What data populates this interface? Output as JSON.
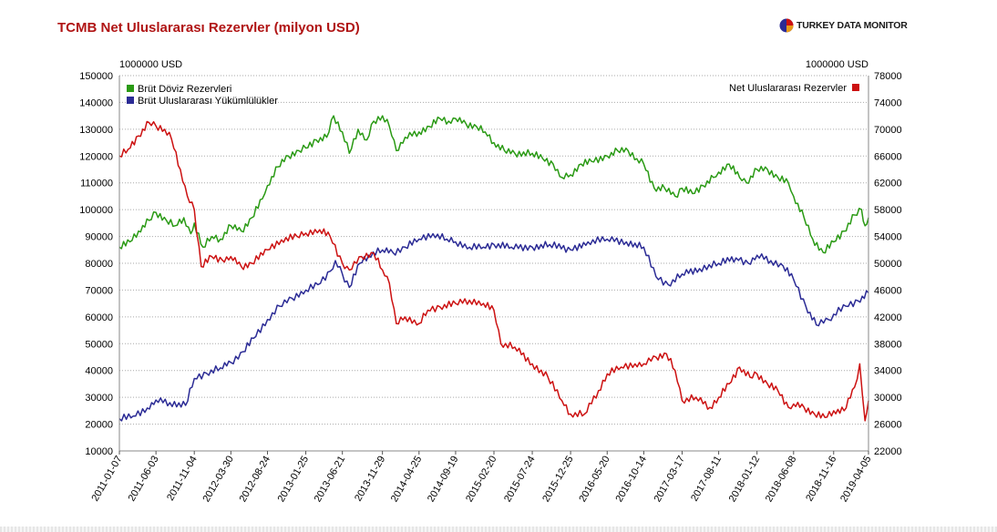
{
  "header": {
    "title": "TCMB Net Uluslararası Rezervler (milyon USD)",
    "brand": "TURKEY DATA MONITOR"
  },
  "chart_data": {
    "type": "line",
    "title": "TCMB Net Uluslararası Rezervler (milyon USD)",
    "left_axis": {
      "unit": "1000000 USD",
      "range": [
        10000,
        150000
      ],
      "ticks": [
        "10000",
        "20000",
        "30000",
        "40000",
        "50000",
        "60000",
        "70000",
        "80000",
        "90000",
        "100000",
        "110000",
        "120000",
        "130000",
        "140000",
        "150000"
      ]
    },
    "right_axis": {
      "unit": "1000000 USD",
      "range": [
        22000,
        78000
      ],
      "ticks": [
        "22000",
        "26000",
        "30000",
        "34000",
        "38000",
        "42000",
        "46000",
        "50000",
        "54000",
        "58000",
        "62000",
        "66000",
        "70000",
        "74000",
        "78000"
      ]
    },
    "x_range": [
      "2011-01-07",
      "2019-04-05"
    ],
    "x_ticks": [
      "2011-01-07",
      "2011-06-03",
      "2011-11-04",
      "2012-03-30",
      "2012-08-24",
      "2013-01-25",
      "2013-06-21",
      "2013-11-29",
      "2014-04-25",
      "2014-09-19",
      "2015-02-20",
      "2015-07-24",
      "2015-12-25",
      "2016-05-20",
      "2016-10-14",
      "2017-03-17",
      "2017-08-11",
      "2018-01-12",
      "2018-06-08",
      "2018-11-16",
      "2019-04-05"
    ],
    "grid": true,
    "legend": [
      {
        "name": "Brüt Döviz Rezervleri",
        "color": "#2a9a14",
        "axis": "left",
        "placement": "top-left"
      },
      {
        "name": "Brüt Uluslararası Yükümlülükler",
        "color": "#2b2b95",
        "axis": "left",
        "placement": "top-left"
      },
      {
        "name": "Net Uluslararası Rezervler",
        "color": "#cc1111",
        "axis": "right",
        "placement": "top-right"
      }
    ],
    "series": [
      {
        "name": "Brüt Döviz Rezervleri",
        "axis": "left",
        "color": "#2a9a14",
        "points": [
          [
            "2011-01-07",
            86000
          ],
          [
            "2011-02-18",
            88000
          ],
          [
            "2011-03-25",
            92000
          ],
          [
            "2011-05-06",
            96000
          ],
          [
            "2011-06-03",
            99000
          ],
          [
            "2011-07-15",
            96000
          ],
          [
            "2011-08-19",
            94000
          ],
          [
            "2011-09-23",
            97000
          ],
          [
            "2011-10-21",
            91000
          ],
          [
            "2011-11-04",
            95000
          ],
          [
            "2011-12-09",
            86000
          ],
          [
            "2012-01-13",
            90000
          ],
          [
            "2012-02-17",
            89000
          ],
          [
            "2012-03-30",
            94000
          ],
          [
            "2012-05-11",
            92000
          ],
          [
            "2012-06-22",
            97000
          ],
          [
            "2012-08-03",
            104000
          ],
          [
            "2012-08-24",
            109000
          ],
          [
            "2012-10-05",
            116000
          ],
          [
            "2012-11-16",
            120000
          ],
          [
            "2012-12-28",
            122000
          ],
          [
            "2013-01-25",
            123000
          ],
          [
            "2013-03-08",
            126000
          ],
          [
            "2013-04-19",
            127000
          ],
          [
            "2013-05-17",
            135000
          ],
          [
            "2013-06-21",
            129000
          ],
          [
            "2013-07-19",
            121000
          ],
          [
            "2013-08-23",
            130000
          ],
          [
            "2013-09-27",
            126000
          ],
          [
            "2013-10-25",
            133000
          ],
          [
            "2013-11-29",
            135000
          ],
          [
            "2013-12-27",
            131000
          ],
          [
            "2014-01-24",
            122000
          ],
          [
            "2014-02-28",
            127000
          ],
          [
            "2014-04-25",
            129000
          ],
          [
            "2014-06-06",
            131000
          ],
          [
            "2014-07-18",
            134000
          ],
          [
            "2014-08-22",
            133000
          ],
          [
            "2014-09-19",
            134000
          ],
          [
            "2014-10-31",
            132000
          ],
          [
            "2014-12-12",
            131000
          ],
          [
            "2015-01-16",
            129000
          ],
          [
            "2015-02-20",
            125000
          ],
          [
            "2015-04-03",
            122000
          ],
          [
            "2015-05-15",
            121000
          ],
          [
            "2015-07-24",
            121000
          ],
          [
            "2015-09-04",
            119000
          ],
          [
            "2015-10-16",
            117000
          ],
          [
            "2015-11-20",
            112000
          ],
          [
            "2015-12-25",
            113000
          ],
          [
            "2016-02-05",
            117000
          ],
          [
            "2016-03-18",
            118000
          ],
          [
            "2016-05-20",
            120000
          ],
          [
            "2016-07-01",
            122000
          ],
          [
            "2016-08-12",
            122000
          ],
          [
            "2016-09-16",
            119000
          ],
          [
            "2016-10-14",
            117000
          ],
          [
            "2016-11-25",
            108000
          ],
          [
            "2017-01-06",
            108000
          ],
          [
            "2017-02-17",
            105000
          ],
          [
            "2017-03-17",
            108000
          ],
          [
            "2017-04-28",
            106000
          ],
          [
            "2017-06-09",
            109000
          ],
          [
            "2017-07-21",
            112000
          ],
          [
            "2017-08-11",
            114000
          ],
          [
            "2017-09-22",
            117000
          ],
          [
            "2017-11-03",
            112000
          ],
          [
            "2017-12-01",
            110000
          ],
          [
            "2018-01-12",
            115000
          ],
          [
            "2018-02-23",
            115000
          ],
          [
            "2018-04-06",
            112000
          ],
          [
            "2018-05-18",
            110000
          ],
          [
            "2018-06-08",
            105000
          ],
          [
            "2018-07-20",
            97000
          ],
          [
            "2018-08-24",
            89000
          ],
          [
            "2018-10-05",
            84000
          ],
          [
            "2018-11-16",
            88000
          ],
          [
            "2018-12-28",
            92000
          ],
          [
            "2019-02-08",
            98000
          ],
          [
            "2019-03-08",
            100000
          ],
          [
            "2019-03-22",
            94000
          ],
          [
            "2019-04-05",
            97000
          ]
        ]
      },
      {
        "name": "Brüt Uluslararası Yükümlülükler",
        "axis": "left",
        "color": "#2b2b95",
        "points": [
          [
            "2011-01-07",
            22000
          ],
          [
            "2011-03-04",
            23000
          ],
          [
            "2011-04-29",
            26000
          ],
          [
            "2011-06-03",
            29000
          ],
          [
            "2011-07-29",
            28000
          ],
          [
            "2011-09-30",
            27000
          ],
          [
            "2011-11-04",
            37000
          ],
          [
            "2011-12-23",
            39000
          ],
          [
            "2012-02-17",
            41000
          ],
          [
            "2012-03-30",
            43000
          ],
          [
            "2012-05-18",
            47000
          ],
          [
            "2012-06-29",
            52000
          ],
          [
            "2012-08-24",
            59000
          ],
          [
            "2012-10-12",
            64000
          ],
          [
            "2012-11-30",
            67000
          ],
          [
            "2013-01-25",
            70000
          ],
          [
            "2013-03-15",
            72000
          ],
          [
            "2013-05-03",
            77000
          ],
          [
            "2013-05-24",
            81000
          ],
          [
            "2013-06-21",
            76000
          ],
          [
            "2013-07-19",
            71000
          ],
          [
            "2013-08-30",
            80000
          ],
          [
            "2013-10-04",
            83000
          ],
          [
            "2013-11-29",
            85000
          ],
          [
            "2014-01-10",
            84000
          ],
          [
            "2014-02-28",
            86000
          ],
          [
            "2014-04-25",
            89000
          ],
          [
            "2014-06-20",
            91000
          ],
          [
            "2014-08-15",
            89000
          ],
          [
            "2014-09-19",
            88000
          ],
          [
            "2014-11-14",
            86000
          ],
          [
            "2015-01-09",
            86000
          ],
          [
            "2015-02-20",
            87000
          ],
          [
            "2015-05-01",
            86000
          ],
          [
            "2015-07-24",
            86000
          ],
          [
            "2015-10-02",
            87000
          ],
          [
            "2015-12-25",
            85000
          ],
          [
            "2016-03-04",
            88000
          ],
          [
            "2016-05-20",
            89000
          ],
          [
            "2016-08-05",
            88000
          ],
          [
            "2016-10-14",
            86000
          ],
          [
            "2016-12-02",
            75000
          ],
          [
            "2017-01-20",
            72000
          ],
          [
            "2017-03-17",
            76000
          ],
          [
            "2017-05-26",
            78000
          ],
          [
            "2017-08-11",
            80000
          ],
          [
            "2017-10-20",
            82000
          ],
          [
            "2017-12-08",
            80000
          ],
          [
            "2018-01-12",
            83000
          ],
          [
            "2018-03-09",
            81000
          ],
          [
            "2018-04-27",
            79000
          ],
          [
            "2018-06-08",
            74000
          ],
          [
            "2018-07-27",
            64000
          ],
          [
            "2018-09-07",
            57000
          ],
          [
            "2018-10-26",
            59000
          ],
          [
            "2018-11-16",
            61000
          ],
          [
            "2019-01-04",
            64000
          ],
          [
            "2019-02-22",
            66000
          ],
          [
            "2019-04-05",
            69000
          ]
        ]
      },
      {
        "name": "Net Uluslararası Rezervler",
        "axis": "right",
        "color": "#cc1111",
        "points": [
          [
            "2011-01-07",
            66000
          ],
          [
            "2011-02-11",
            67000
          ],
          [
            "2011-03-25",
            69000
          ],
          [
            "2011-05-06",
            71000
          ],
          [
            "2011-06-03",
            70500
          ],
          [
            "2011-07-08",
            70000
          ],
          [
            "2011-08-05",
            68500
          ],
          [
            "2011-09-09",
            64000
          ],
          [
            "2011-10-07",
            60000
          ],
          [
            "2011-11-04",
            58000
          ],
          [
            "2011-12-02",
            49500
          ],
          [
            "2012-01-13",
            51000
          ],
          [
            "2012-02-24",
            50500
          ],
          [
            "2012-03-30",
            51000
          ],
          [
            "2012-05-11",
            49500
          ],
          [
            "2012-06-22",
            50000
          ],
          [
            "2012-08-24",
            52000
          ],
          [
            "2012-10-19",
            53500
          ],
          [
            "2012-12-21",
            54000
          ],
          [
            "2013-01-25",
            54500
          ],
          [
            "2013-03-22",
            55000
          ],
          [
            "2013-05-03",
            54000
          ],
          [
            "2013-06-21",
            50000
          ],
          [
            "2013-07-19",
            49000
          ],
          [
            "2013-09-06",
            51000
          ],
          [
            "2013-10-25",
            51500
          ],
          [
            "2013-11-29",
            49000
          ],
          [
            "2013-12-27",
            47000
          ],
          [
            "2014-01-24",
            41000
          ],
          [
            "2014-02-28",
            42000
          ],
          [
            "2014-04-25",
            41000
          ],
          [
            "2014-05-30",
            43000
          ],
          [
            "2014-07-18",
            43500
          ],
          [
            "2014-09-19",
            44000
          ],
          [
            "2014-11-14",
            44500
          ],
          [
            "2015-01-09",
            44000
          ],
          [
            "2015-02-20",
            43000
          ],
          [
            "2015-03-20",
            38000
          ],
          [
            "2015-05-15",
            37500
          ],
          [
            "2015-07-24",
            35000
          ],
          [
            "2015-09-25",
            33000
          ],
          [
            "2015-11-20",
            29500
          ],
          [
            "2015-12-25",
            27500
          ],
          [
            "2016-02-19",
            27500
          ],
          [
            "2016-04-15",
            31000
          ],
          [
            "2016-05-20",
            33500
          ],
          [
            "2016-07-15",
            34500
          ],
          [
            "2016-09-09",
            35000
          ],
          [
            "2016-10-14",
            35000
          ],
          [
            "2016-12-02",
            36000
          ],
          [
            "2017-01-13",
            36500
          ],
          [
            "2017-02-17",
            34000
          ],
          [
            "2017-03-17",
            29500
          ],
          [
            "2017-05-12",
            30000
          ],
          [
            "2017-07-07",
            28500
          ],
          [
            "2017-08-11",
            30000
          ],
          [
            "2017-09-22",
            32000
          ],
          [
            "2017-11-03",
            34500
          ],
          [
            "2017-12-15",
            33000
          ],
          [
            "2018-01-12",
            33500
          ],
          [
            "2018-02-23",
            32000
          ],
          [
            "2018-04-06",
            31000
          ],
          [
            "2018-05-18",
            28500
          ],
          [
            "2018-06-08",
            29000
          ],
          [
            "2018-07-20",
            28500
          ],
          [
            "2018-08-31",
            27500
          ],
          [
            "2018-10-12",
            27000
          ],
          [
            "2018-11-16",
            28000
          ],
          [
            "2018-12-28",
            28000
          ],
          [
            "2019-02-08",
            31500
          ],
          [
            "2019-03-01",
            35000
          ],
          [
            "2019-03-22",
            26500
          ],
          [
            "2019-04-05",
            29500
          ]
        ]
      }
    ]
  }
}
